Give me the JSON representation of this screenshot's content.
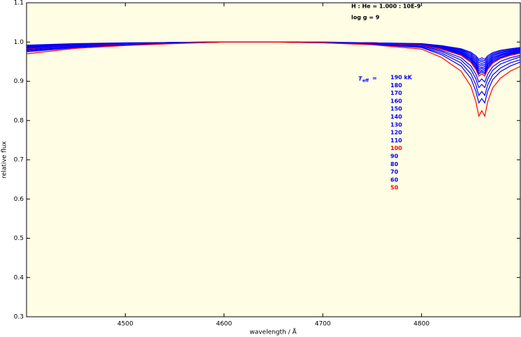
{
  "chart_data": {
    "type": "line",
    "xlabel": "wavelength / Å",
    "ylabel": "relative flux",
    "annotations": [
      "H : He = 1.000 : 10E-9",
      "log g  =  9"
    ],
    "legend_title": {
      "symbol": "T",
      "subscript": "eff",
      "sign": "="
    },
    "xlim": [
      4400,
      4900
    ],
    "ylim": [
      0.3,
      1.1
    ],
    "xticks": [
      4500,
      4600,
      4700,
      4800
    ],
    "yticks": [
      0.3,
      0.4,
      0.5,
      0.6,
      0.7,
      0.8,
      0.9,
      {
        "value": 1,
        "label": "1.0"
      },
      1.1
    ],
    "background": "#fffde3",
    "x": [
      4400,
      4450,
      4500,
      4550,
      4600,
      4650,
      4700,
      4750,
      4800,
      4820,
      4840,
      4850,
      4855,
      4858,
      4861,
      4864,
      4867,
      4872,
      4880,
      4890,
      4900
    ],
    "series": [
      {
        "name": "190 kK",
        "color": "#0000ff",
        "values": [
          0.992,
          0.996,
          0.998,
          0.999,
          1,
          1,
          1,
          0.998,
          0.996,
          0.991,
          0.983,
          0.974,
          0.965,
          0.956,
          0.96,
          0.956,
          0.965,
          0.973,
          0.979,
          0.983,
          0.986
        ]
      },
      {
        "name": "180",
        "color": "#0000ff",
        "values": [
          0.991,
          0.995,
          0.997,
          0.999,
          1,
          1,
          0.999,
          0.998,
          0.995,
          0.99,
          0.981,
          0.971,
          0.961,
          0.952,
          0.955,
          0.952,
          0.961,
          0.97,
          0.977,
          0.981,
          0.984
        ]
      },
      {
        "name": "170",
        "color": "#0000ff",
        "values": [
          0.99,
          0.995,
          0.997,
          0.999,
          1,
          1,
          0.999,
          0.998,
          0.995,
          0.989,
          0.979,
          0.968,
          0.957,
          0.947,
          0.951,
          0.947,
          0.957,
          0.967,
          0.974,
          0.979,
          0.982
        ]
      },
      {
        "name": "160",
        "color": "#0000ff",
        "values": [
          0.989,
          0.994,
          0.997,
          0.999,
          1,
          1,
          0.999,
          0.998,
          0.995,
          0.988,
          0.977,
          0.965,
          0.953,
          0.942,
          0.946,
          0.942,
          0.953,
          0.964,
          0.972,
          0.977,
          0.981
        ]
      },
      {
        "name": "150",
        "color": "#0000ff",
        "values": [
          0.988,
          0.993,
          0.996,
          0.999,
          1,
          1,
          0.999,
          0.998,
          0.994,
          0.987,
          0.975,
          0.962,
          0.949,
          0.937,
          0.942,
          0.937,
          0.949,
          0.961,
          0.969,
          0.975,
          0.979
        ]
      },
      {
        "name": "140",
        "color": "#0000ff",
        "values": [
          0.987,
          0.993,
          0.996,
          0.998,
          1,
          1,
          0.999,
          0.998,
          0.994,
          0.986,
          0.973,
          0.959,
          0.945,
          0.932,
          0.937,
          0.932,
          0.945,
          0.958,
          0.967,
          0.973,
          0.978
        ]
      },
      {
        "name": "130",
        "color": "#0000ff",
        "values": [
          0.986,
          0.992,
          0.996,
          0.998,
          1,
          1,
          0.999,
          0.997,
          0.993,
          0.985,
          0.972,
          0.957,
          0.942,
          0.927,
          0.933,
          0.927,
          0.942,
          0.955,
          0.965,
          0.972,
          0.976
        ]
      },
      {
        "name": "120",
        "color": "#0000ff",
        "values": [
          0.985,
          0.992,
          0.996,
          0.998,
          1,
          1,
          0.999,
          0.997,
          0.993,
          0.984,
          0.97,
          0.954,
          0.938,
          0.922,
          0.928,
          0.922,
          0.938,
          0.952,
          0.962,
          0.97,
          0.974
        ]
      },
      {
        "name": "110",
        "color": "#0000ff",
        "values": [
          0.984,
          0.991,
          0.995,
          0.998,
          1,
          1,
          0.999,
          0.997,
          0.992,
          0.983,
          0.968,
          0.951,
          0.934,
          0.918,
          0.924,
          0.918,
          0.934,
          0.949,
          0.96,
          0.968,
          0.973
        ]
      },
      {
        "name": "100",
        "color": "#ff0000",
        "values": [
          0.982,
          0.99,
          0.995,
          0.998,
          1,
          1,
          0.999,
          0.997,
          0.992,
          0.982,
          0.966,
          0.948,
          0.93,
          0.913,
          0.919,
          0.913,
          0.93,
          0.946,
          0.958,
          0.966,
          0.971
        ]
      },
      {
        "name": "90",
        "color": "#0000ff",
        "values": [
          0.981,
          0.99,
          0.994,
          0.998,
          1,
          1,
          0.999,
          0.996,
          0.991,
          0.979,
          0.96,
          0.939,
          0.918,
          0.898,
          0.906,
          0.898,
          0.918,
          0.937,
          0.951,
          0.96,
          0.966
        ]
      },
      {
        "name": "80",
        "color": "#0000ff",
        "values": [
          0.979,
          0.988,
          0.994,
          0.997,
          1,
          1,
          0.999,
          0.996,
          0.989,
          0.976,
          0.954,
          0.93,
          0.906,
          0.884,
          0.892,
          0.884,
          0.906,
          0.928,
          0.944,
          0.954,
          0.962
        ]
      },
      {
        "name": "70",
        "color": "#0000ff",
        "values": [
          0.977,
          0.987,
          0.993,
          0.997,
          1,
          1,
          0.999,
          0.995,
          0.987,
          0.972,
          0.947,
          0.919,
          0.891,
          0.864,
          0.874,
          0.864,
          0.891,
          0.916,
          0.934,
          0.947,
          0.955
        ]
      },
      {
        "name": "60",
        "color": "#0000ff",
        "values": [
          0.975,
          0.986,
          0.993,
          0.997,
          1,
          1,
          0.998,
          0.994,
          0.986,
          0.968,
          0.939,
          0.907,
          0.875,
          0.845,
          0.856,
          0.845,
          0.875,
          0.904,
          0.925,
          0.939,
          0.949
        ]
      },
      {
        "name": "50",
        "color": "#ff0000",
        "values": [
          0.97,
          0.984,
          0.991,
          0.996,
          1,
          1,
          0.998,
          0.993,
          0.982,
          0.961,
          0.926,
          0.887,
          0.848,
          0.811,
          0.825,
          0.811,
          0.848,
          0.883,
          0.908,
          0.926,
          0.938
        ]
      }
    ]
  }
}
